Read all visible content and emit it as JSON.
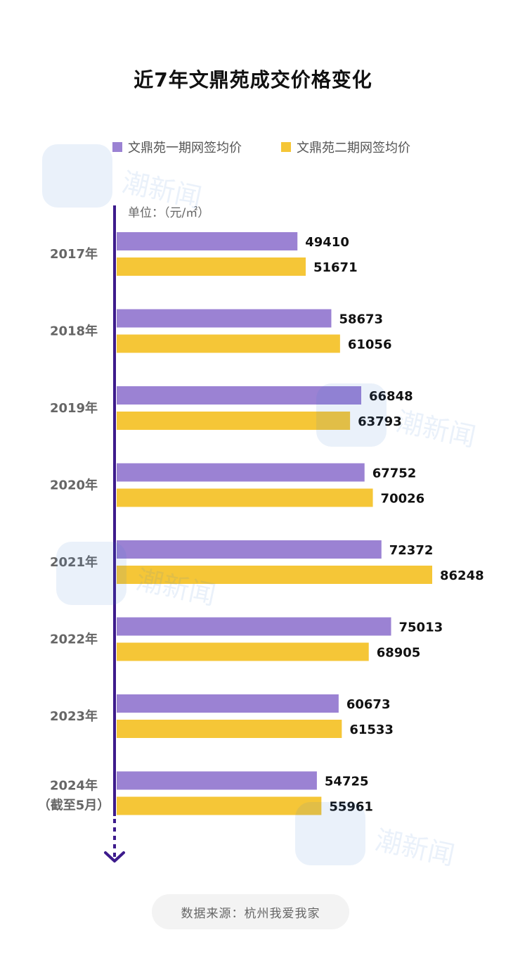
{
  "title": "近7年文鼎苑成交价格变化",
  "unit_label": "单位：（元/㎡）",
  "source": "数据来源：杭州我爱我家",
  "watermark": "潮新闻",
  "colors": {
    "series1": "#9b82d3",
    "series2": "#f5c637",
    "axis": "#3d1b8c"
  },
  "chart_data": {
    "type": "bar",
    "orientation": "horizontal",
    "categories": [
      "2017年",
      "2018年",
      "2019年",
      "2020年",
      "2021年",
      "2022年",
      "2023年",
      "2024年\n（截至5月）"
    ],
    "series": [
      {
        "name": "文鼎苑一期网签均价",
        "values": [
          49410,
          58673,
          66848,
          67752,
          72372,
          75013,
          60673,
          54725
        ]
      },
      {
        "name": "文鼎苑二期网签均价",
        "values": [
          51671,
          61056,
          63793,
          70026,
          86248,
          68905,
          61533,
          55961
        ]
      }
    ],
    "xlim": [
      0,
      86248
    ],
    "grid": false,
    "legend_position": "top"
  }
}
